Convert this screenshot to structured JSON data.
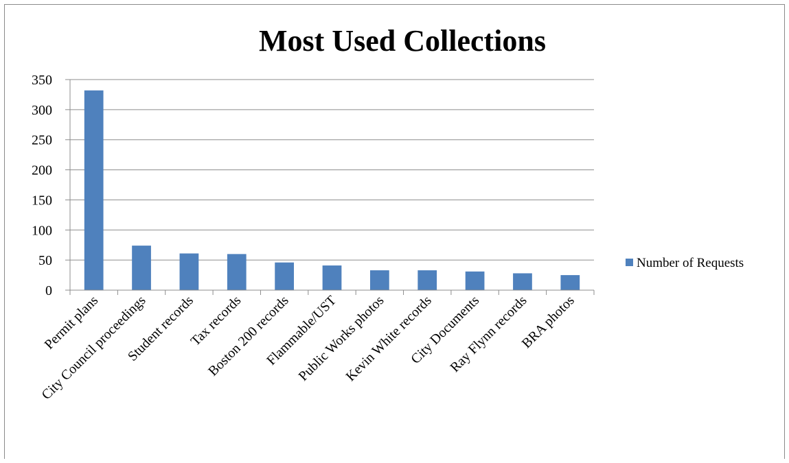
{
  "chart_data": {
    "type": "bar",
    "title": "Most Used Collections",
    "xlabel": "",
    "ylabel": "",
    "ylim": [
      0,
      350
    ],
    "yticks": [
      0,
      50,
      100,
      150,
      200,
      250,
      300,
      350
    ],
    "grid": true,
    "legend_position": "right",
    "categories": [
      "Permit plans",
      "City Council proceedings",
      "Student records",
      "Tax records",
      "Boston 200 records",
      "Flammable/UST",
      "Public Works photos",
      "Kevin White records",
      "City Documents",
      "Ray Flynn records",
      "BRA photos"
    ],
    "series": [
      {
        "name": "Number of Requests",
        "color": "#4f81bd",
        "values": [
          332,
          74,
          61,
          60,
          46,
          41,
          33,
          33,
          31,
          28,
          25
        ]
      }
    ]
  }
}
